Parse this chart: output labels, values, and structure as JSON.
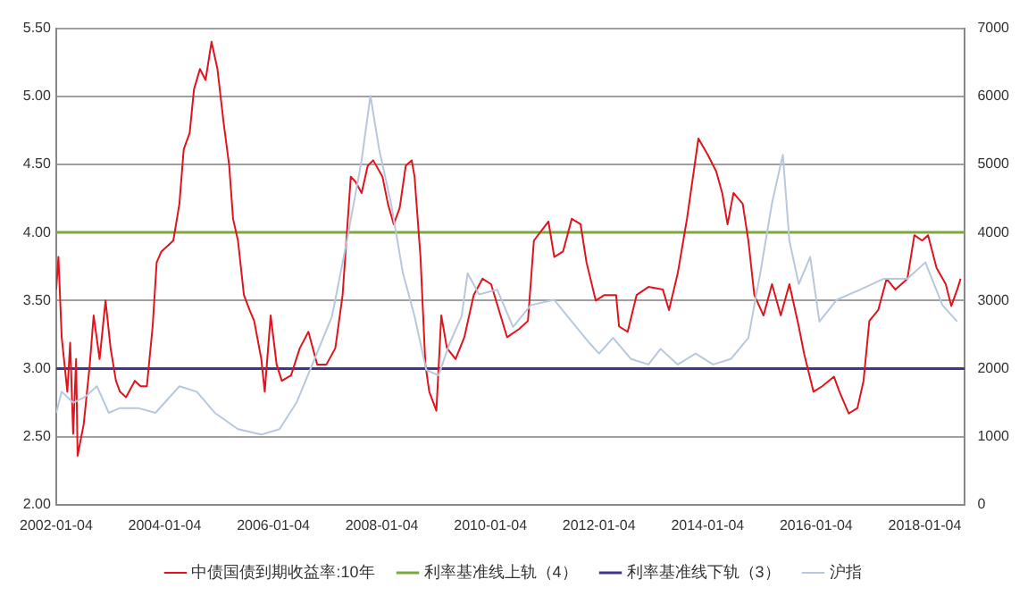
{
  "chart_data": {
    "type": "line",
    "xlim": [
      "2002-01-04",
      "2018-10-01"
    ],
    "xticks": [
      "2002-01-04",
      "2004-01-04",
      "2006-01-04",
      "2008-01-04",
      "2010-01-04",
      "2012-01-04",
      "2014-01-04",
      "2016-01-04",
      "2018-01-04"
    ],
    "ylim": [
      2,
      5.5
    ],
    "yticks": [
      {
        "value": 2,
        "label": "2.00"
      },
      {
        "value": 2.5,
        "label": "2.50"
      },
      {
        "value": 3,
        "label": "3.00"
      },
      {
        "value": 3.5,
        "label": "3.50"
      },
      {
        "value": 4,
        "label": "4.00"
      },
      {
        "value": 4.5,
        "label": "4.50"
      },
      {
        "value": 5,
        "label": "5.00"
      },
      {
        "value": 5.5,
        "label": "5.50"
      }
    ],
    "y2lim": [
      0,
      7000
    ],
    "y2ticks": [
      0,
      1000,
      2000,
      3000,
      4000,
      5000,
      6000,
      7000
    ],
    "grid": "y",
    "legend": "bottom",
    "marker": "none",
    "series": [
      {
        "name": "中债国债到期收益率:10年",
        "color": "#e0141c",
        "x": [
          "2002-01-04",
          "2002-01-19",
          "2002-02-10",
          "2002-03-20",
          "2002-04-08",
          "2002-04-28",
          "2002-05-18",
          "2002-05-28",
          "2002-07-08",
          "2002-08-18",
          "2002-09-13",
          "2002-10-23",
          "2002-12-02",
          "2003-01-05",
          "2003-02-10",
          "2003-03-09",
          "2003-04-19",
          "2003-06-17",
          "2003-07-26",
          "2003-09-06",
          "2003-10-15",
          "2003-11-11",
          "2003-12-13",
          "2004-01-23",
          "2004-03-02",
          "2004-04-12",
          "2004-05-11",
          "2004-06-20",
          "2004-07-19",
          "2004-08-28",
          "2004-10-05",
          "2004-11-14",
          "2004-12-24",
          "2005-02-03",
          "2005-03-13",
          "2005-04-08",
          "2005-05-11",
          "2005-06-20",
          "2005-07-28",
          "2005-08-28",
          "2005-10-15",
          "2005-11-07",
          "2005-12-17",
          "2006-01-26",
          "2006-03-02",
          "2006-05-03",
          "2006-07-01",
          "2006-08-28",
          "2006-10-26",
          "2006-12-27",
          "2007-02-25",
          "2007-04-15",
          "2007-06-09",
          "2007-07-12",
          "2007-08-21",
          "2007-10-01",
          "2007-11-07",
          "2008-01-08",
          "2008-02-14",
          "2008-03-24",
          "2008-05-03",
          "2008-06-13",
          "2008-07-23",
          "2008-08-11",
          "2008-09-20",
          "2008-10-23",
          "2008-11-18",
          "2009-01-05",
          "2009-02-07",
          "2009-03-17",
          "2009-05-14",
          "2009-07-12",
          "2009-09-13",
          "2009-11-11",
          "2010-01-08",
          "2010-04-26",
          "2010-07-15",
          "2010-09-13",
          "2010-10-23",
          "2011-01-29",
          "2011-03-09",
          "2011-05-07",
          "2011-07-05",
          "2011-09-02",
          "2011-10-12",
          "2011-12-13",
          "2012-02-10",
          "2012-04-28",
          "2012-05-18",
          "2012-07-15",
          "2012-09-13",
          "2012-12-02",
          "2013-03-09",
          "2013-04-19",
          "2013-06-17",
          "2013-08-18",
          "2013-11-03",
          "2014-01-05",
          "2014-03-02",
          "2014-04-12",
          "2014-05-18",
          "2014-06-27",
          "2014-08-28",
          "2014-10-05",
          "2014-11-14",
          "2015-01-15",
          "2015-03-13",
          "2015-05-11",
          "2015-07-08",
          "2015-09-09",
          "2015-10-15",
          "2015-12-17",
          "2016-02-14",
          "2016-05-03",
          "2016-06-09",
          "2016-08-10",
          "2016-10-08",
          "2016-11-18",
          "2016-12-27",
          "2017-02-25",
          "2017-04-22",
          "2017-06-20",
          "2017-09-09",
          "2017-10-26",
          "2017-12-17",
          "2018-01-26",
          "2018-03-24",
          "2018-05-25",
          "2018-07-01",
          "2018-08-10",
          "2018-09-02"
        ],
        "values": [
          3.58,
          3.82,
          3.23,
          2.83,
          3.19,
          2.52,
          3.07,
          2.36,
          2.59,
          3.03,
          3.39,
          3.07,
          3.5,
          3.15,
          2.91,
          2.83,
          2.79,
          2.91,
          2.87,
          2.87,
          3.31,
          3.78,
          3.86,
          3.9,
          3.94,
          4.21,
          4.61,
          4.73,
          5.05,
          5.2,
          5.12,
          5.4,
          5.2,
          4.81,
          4.49,
          4.1,
          3.94,
          3.54,
          3.43,
          3.35,
          3.07,
          2.83,
          3.39,
          3.03,
          2.91,
          2.95,
          3.15,
          3.27,
          3.03,
          3.03,
          3.15,
          3.54,
          4.41,
          4.37,
          4.29,
          4.49,
          4.53,
          4.41,
          4.21,
          4.06,
          4.18,
          4.49,
          4.53,
          4.41,
          3.82,
          3.03,
          2.83,
          2.69,
          3.39,
          3.15,
          3.07,
          3.23,
          3.54,
          3.66,
          3.62,
          3.23,
          3.29,
          3.35,
          3.94,
          4.08,
          3.82,
          3.86,
          4.1,
          4.06,
          3.78,
          3.5,
          3.54,
          3.54,
          3.31,
          3.27,
          3.54,
          3.6,
          3.58,
          3.43,
          3.7,
          4.1,
          4.69,
          4.57,
          4.45,
          4.29,
          4.06,
          4.29,
          4.21,
          3.94,
          3.54,
          3.39,
          3.62,
          3.39,
          3.62,
          3.31,
          3.11,
          2.83,
          2.87,
          2.94,
          2.83,
          2.67,
          2.71,
          2.91,
          3.35,
          3.43,
          3.66,
          3.58,
          3.66,
          3.98,
          3.94,
          3.98,
          3.74,
          3.62,
          3.46,
          3.58,
          3.66
        ]
      },
      {
        "name": "沪指",
        "color": "#b8c8dc",
        "axis": "y2",
        "x": [
          "2002-01-04",
          "2002-02-10",
          "2002-04-28",
          "2002-07-15",
          "2002-10-05",
          "2002-12-24",
          "2003-03-09",
          "2003-07-08",
          "2003-11-03",
          "2004-04-12",
          "2004-08-07",
          "2004-12-06",
          "2005-05-11",
          "2005-10-15",
          "2006-02-14",
          "2006-06-09",
          "2006-10-08",
          "2007-02-03",
          "2007-05-14",
          "2007-08-21",
          "2007-10-19",
          "2007-12-17",
          "2008-03-06",
          "2008-05-25",
          "2008-08-11",
          "2008-10-29",
          "2009-01-19",
          "2009-04-04",
          "2009-06-24",
          "2009-08-03",
          "2009-10-19",
          "2010-02-18",
          "2010-06-05",
          "2010-10-01",
          "2011-03-09",
          "2011-07-05",
          "2011-11-03",
          "2012-01-04",
          "2012-04-08",
          "2012-08-07",
          "2012-12-02",
          "2013-02-21",
          "2013-06-17",
          "2013-10-15",
          "2014-02-10",
          "2014-06-09",
          "2014-10-05",
          "2014-12-24",
          "2015-03-13",
          "2015-05-25",
          "2015-07-08",
          "2015-09-09",
          "2015-11-25",
          "2016-01-26",
          "2016-05-21",
          "2016-10-26",
          "2017-04-04",
          "2017-09-09",
          "2018-01-08",
          "2018-05-03",
          "2018-08-10"
        ],
        "values": [
          1350,
          1660,
          1500,
          1580,
          1740,
          1350,
          1420,
          1420,
          1350,
          1740,
          1660,
          1350,
          1110,
          1030,
          1110,
          1500,
          2140,
          2770,
          3880,
          5060,
          6010,
          5220,
          4430,
          3400,
          2770,
          1980,
          1900,
          2370,
          2770,
          3400,
          3090,
          3160,
          2610,
          2930,
          3010,
          2690,
          2370,
          2220,
          2450,
          2140,
          2060,
          2290,
          2060,
          2220,
          2060,
          2140,
          2450,
          3400,
          4430,
          5140,
          3880,
          3240,
          3640,
          2690,
          3010,
          3160,
          3320,
          3320,
          3560,
          2930,
          2690
        ]
      }
    ],
    "ref_lines": [
      {
        "axis": "y",
        "value": 4,
        "label": "利率基准线上轨（4）",
        "color": "#7aa83c"
      },
      {
        "axis": "y",
        "value": 3,
        "label": "利率基准线下轨（3）",
        "color": "#3e358e"
      }
    ]
  }
}
